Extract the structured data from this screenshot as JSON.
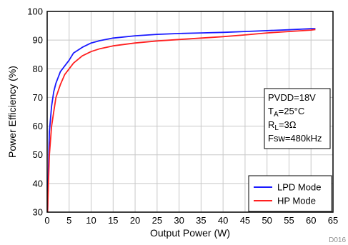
{
  "chart_data": {
    "type": "line",
    "title": "",
    "xlabel": "Output Power (W)",
    "ylabel": "Power Efficiency (%)",
    "xlim": [
      0,
      65
    ],
    "ylim": [
      30,
      100
    ],
    "xticks": [
      0,
      5,
      10,
      15,
      20,
      25,
      30,
      35,
      40,
      45,
      50,
      55,
      60,
      65
    ],
    "yticks": [
      30,
      40,
      50,
      60,
      70,
      80,
      90,
      100
    ],
    "grid": true,
    "legend_position": "bottom-right",
    "series": [
      {
        "name": "LPD Mode",
        "color": "#1a1aff",
        "x": [
          0.1,
          0.3,
          0.5,
          1,
          1.5,
          2,
          3,
          4,
          5,
          6,
          8,
          10,
          12,
          15,
          20,
          25,
          30,
          35,
          40,
          45,
          50,
          55,
          60,
          61
        ],
        "y": [
          30,
          45,
          58,
          67,
          72,
          75,
          79,
          81,
          83,
          85.5,
          87.5,
          89,
          89.8,
          90.7,
          91.5,
          92,
          92.3,
          92.5,
          92.7,
          93,
          93.3,
          93.6,
          94,
          94
        ]
      },
      {
        "name": "HP Mode",
        "color": "#ff2020",
        "x": [
          0.1,
          0.3,
          0.5,
          1,
          1.5,
          2,
          3,
          4,
          5,
          6,
          8,
          10,
          12,
          15,
          20,
          25,
          30,
          35,
          40,
          45,
          50,
          55,
          60,
          61
        ],
        "y": [
          30,
          40,
          50,
          60,
          65,
          70,
          74.5,
          78,
          80,
          82,
          84.5,
          86,
          87,
          88,
          89,
          89.7,
          90.2,
          90.7,
          91.2,
          91.8,
          92.5,
          93,
          93.5,
          93.7
        ]
      }
    ],
    "annotation": {
      "lines": [
        {
          "main": "PVDD=18V",
          "sub": "",
          "rest": ""
        },
        {
          "main": "T",
          "sub": "A",
          "rest": "=25°C"
        },
        {
          "main": "R",
          "sub": "L",
          "rest": "=3Ω"
        },
        {
          "main": "Fsw=480kHz",
          "sub": "",
          "rest": ""
        }
      ]
    }
  },
  "figure_id": "D016"
}
